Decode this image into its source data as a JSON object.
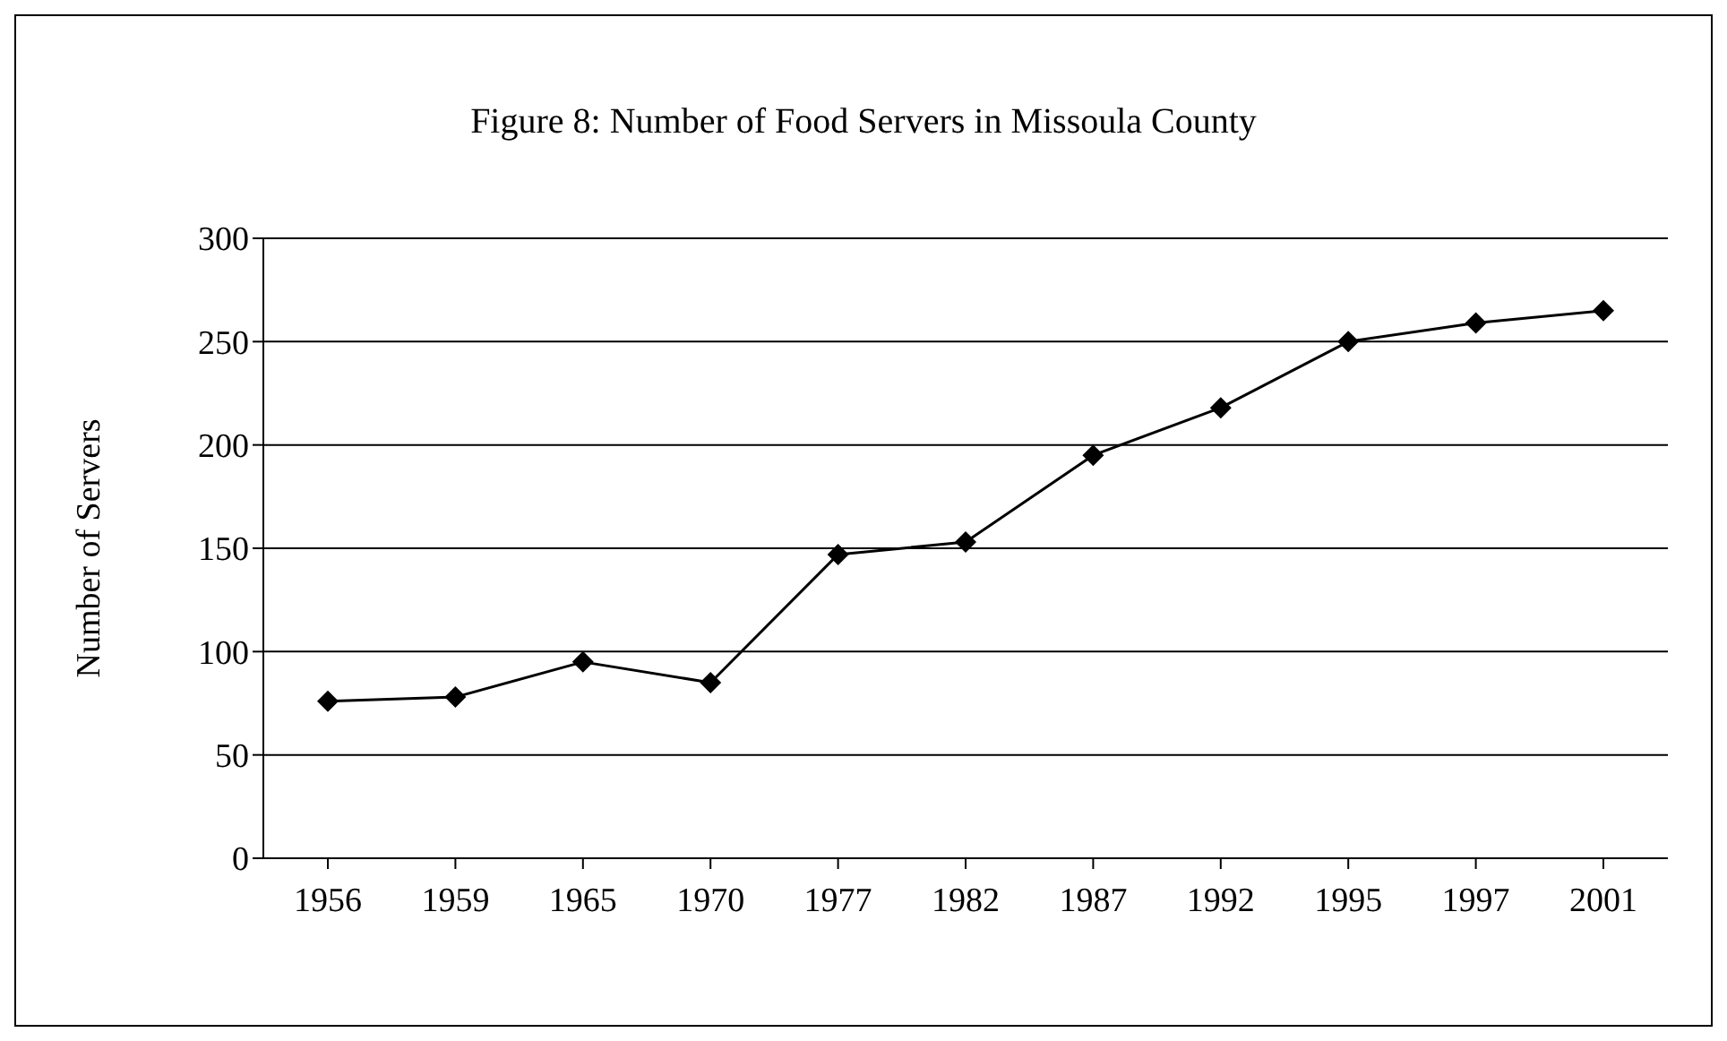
{
  "chart_data": {
    "type": "line",
    "title": "Figure 8: Number of Food Servers in Missoula County",
    "ylabel": "Number of Servers",
    "categories": [
      "1956",
      "1959",
      "1965",
      "1970",
      "1977",
      "1982",
      "1987",
      "1992",
      "1995",
      "1997",
      "2001"
    ],
    "series": [
      {
        "color": "#000000",
        "values": [
          76,
          78,
          95,
          85,
          147,
          153,
          195,
          218,
          250,
          259,
          265
        ]
      }
    ],
    "ylim": [
      0,
      300
    ],
    "yticks": [
      0,
      50,
      100,
      150,
      200,
      250,
      300
    ],
    "grid": "y",
    "marker": "diamond",
    "line_style": "solid",
    "legend": false
  }
}
